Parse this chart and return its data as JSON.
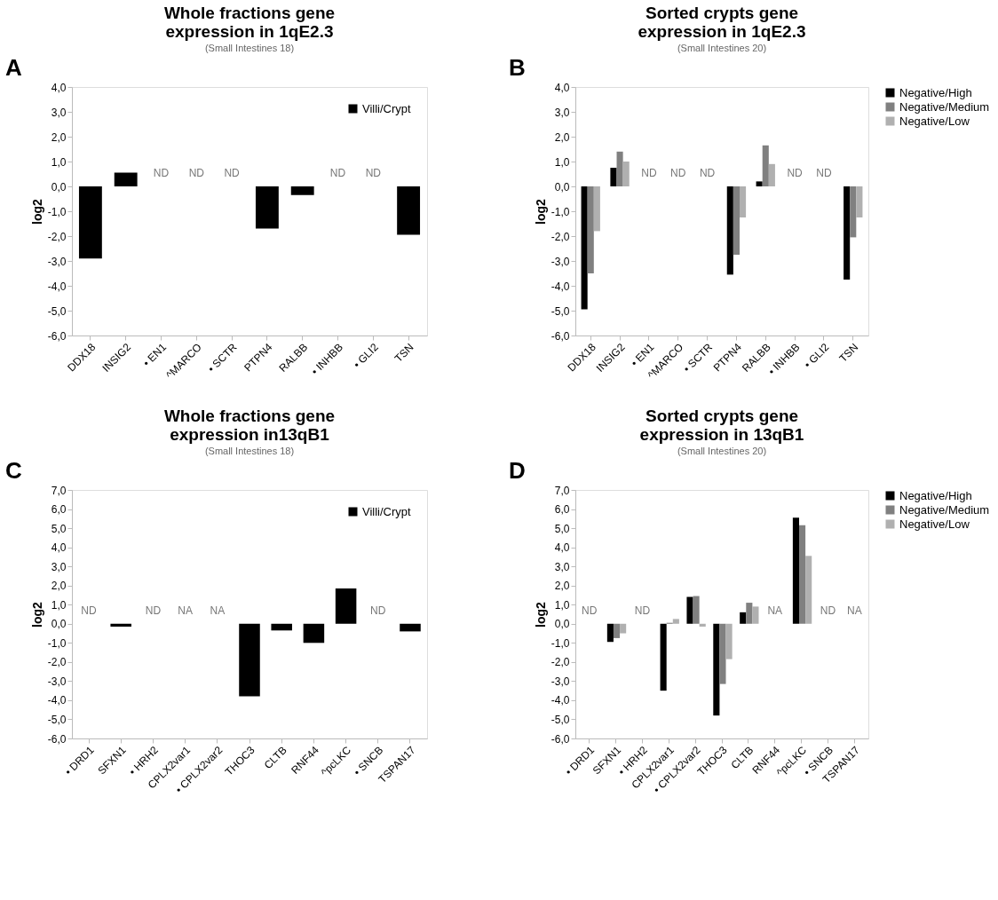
{
  "chart_data": [
    {
      "type": "bar",
      "title": "Whole fractions gene expression in 1qE2.3",
      "subtitle": "(Small Intestines 18)",
      "ylabel": "log2",
      "categories": [
        "DDX18",
        "INSIG2",
        "• EN1",
        "^MARCO",
        "• SCTR",
        "PTPN4",
        "RALBB",
        "• INHBB",
        "• GLI2",
        "TSN"
      ],
      "series": [
        {
          "name": "Villi/Crypt",
          "color": "#000000",
          "values": [
            -2.9,
            0.55,
            null,
            null,
            null,
            -1.7,
            -0.35,
            null,
            null,
            -1.95
          ],
          "value_labels": [
            null,
            null,
            "ND",
            "ND",
            "ND",
            null,
            null,
            "ND",
            "ND",
            null
          ]
        }
      ],
      "ylim": [
        -6,
        4
      ],
      "yticks": [
        {
          "value": -6,
          "label": "-6,0"
        },
        {
          "value": -5,
          "label": "-5,0"
        },
        {
          "value": -4,
          "label": "-4,0"
        },
        {
          "value": -3,
          "label": "-3,0"
        },
        {
          "value": -2,
          "label": "-2,0"
        },
        {
          "value": -1,
          "label": "-1,0"
        },
        {
          "value": 0,
          "label": "0,0"
        },
        {
          "value": 1,
          "label": "1,0"
        },
        {
          "value": 2,
          "label": "2,0"
        },
        {
          "value": 3,
          "label": "3,0"
        },
        {
          "value": 4,
          "label": "4,0"
        }
      ],
      "legend": "top right",
      "annotations": [
        "A"
      ]
    },
    {
      "type": "bar",
      "title": "Sorted crypts gene expression in 1qE2.3",
      "subtitle": "(Small Intestines 20)",
      "ylabel": "log2",
      "categories": [
        "DDX18",
        "INSIG2",
        "• EN1",
        "^MARCO",
        "• SCTR",
        "PTPN4",
        "RALBB",
        "• INHBB",
        "• GLI2",
        "TSN"
      ],
      "series": [
        {
          "name": "Negative/High",
          "color": "#000000",
          "values": [
            -4.95,
            0.75,
            null,
            null,
            null,
            -3.55,
            0.2,
            null,
            null,
            -3.75
          ],
          "value_labels": [
            null,
            null,
            "ND",
            "ND",
            "ND",
            null,
            null,
            "ND",
            "ND",
            null
          ]
        },
        {
          "name": "Negative/Medium",
          "color": "#808080",
          "values": [
            -3.5,
            1.4,
            null,
            null,
            null,
            -2.75,
            1.65,
            null,
            null,
            -2.05
          ]
        },
        {
          "name": "Negative/Low",
          "color": "#b0b0b0",
          "values": [
            -1.8,
            1.0,
            null,
            null,
            null,
            -1.25,
            0.9,
            null,
            null,
            -1.25
          ]
        }
      ],
      "ylim": [
        -6,
        4
      ],
      "yticks": [
        {
          "value": -6,
          "label": "-6,0"
        },
        {
          "value": -5,
          "label": "-5,0"
        },
        {
          "value": -4,
          "label": "-4,0"
        },
        {
          "value": -3,
          "label": "-3,0"
        },
        {
          "value": -2,
          "label": "-2,0"
        },
        {
          "value": -1,
          "label": "-1,0"
        },
        {
          "value": 0,
          "label": "0,0"
        },
        {
          "value": 1,
          "label": "1,0"
        },
        {
          "value": 2,
          "label": "2,0"
        },
        {
          "value": 3,
          "label": "3,0"
        },
        {
          "value": 4,
          "label": "4,0"
        }
      ],
      "legend": "right",
      "annotations": [
        "B"
      ]
    },
    {
      "type": "bar",
      "title": "Whole fractions gene expression in13qB1",
      "subtitle": "(Small Intestines 18)",
      "ylabel": "log2",
      "categories": [
        "• DRD1",
        "SFXN1",
        "• HRH2",
        "CPLX2var1",
        "• CPLX2var2",
        "THOC3",
        "CLTB",
        "RNF44",
        "^pcLKC",
        "• SNCB",
        "TSPAN17"
      ],
      "series": [
        {
          "name": "Villi/Crypt",
          "color": "#000000",
          "values": [
            null,
            -0.15,
            null,
            null,
            null,
            -3.8,
            -0.35,
            -1.0,
            1.85,
            null,
            -0.4
          ],
          "value_labels": [
            "ND",
            null,
            "ND",
            "NA",
            "NA",
            null,
            null,
            null,
            null,
            "ND",
            null
          ]
        }
      ],
      "ylim": [
        -6,
        7
      ],
      "yticks": [
        {
          "value": -6,
          "label": "-6,0"
        },
        {
          "value": -5,
          "label": "-5,0"
        },
        {
          "value": -4,
          "label": "-4,0"
        },
        {
          "value": -3,
          "label": "-3,0"
        },
        {
          "value": -2,
          "label": "-2,0"
        },
        {
          "value": -1,
          "label": "-1,0"
        },
        {
          "value": 0,
          "label": "0,0"
        },
        {
          "value": 1,
          "label": "1,0"
        },
        {
          "value": 2,
          "label": "2,0"
        },
        {
          "value": 3,
          "label": "3,0"
        },
        {
          "value": 4,
          "label": "4,0"
        },
        {
          "value": 5,
          "label": "5,0"
        },
        {
          "value": 6,
          "label": "6,0"
        },
        {
          "value": 7,
          "label": "7,0"
        }
      ],
      "legend": "top right",
      "annotations": [
        "C"
      ]
    },
    {
      "type": "bar",
      "title": "Sorted crypts gene expression in 13qB1",
      "subtitle": "(Small Intestines 20)",
      "ylabel": "log2",
      "categories": [
        "• DRD1",
        "SFXN1",
        "• HRH2",
        "CPLX2var1",
        "• CPLX2var2",
        "THOC3",
        "CLTB",
        "RNF44",
        "^pcLKC",
        "• SNCB",
        "TSPAN17"
      ],
      "series": [
        {
          "name": "Negative/High",
          "color": "#000000",
          "values": [
            null,
            -0.95,
            null,
            -3.5,
            1.4,
            -4.8,
            0.6,
            null,
            5.55,
            null,
            null
          ],
          "value_labels": [
            "ND",
            null,
            "ND",
            null,
            null,
            null,
            null,
            "NA",
            null,
            "ND",
            "NA"
          ]
        },
        {
          "name": "Negative/Medium",
          "color": "#808080",
          "values": [
            null,
            -0.75,
            null,
            0.05,
            1.45,
            -3.15,
            1.1,
            null,
            5.15,
            null,
            null
          ]
        },
        {
          "name": "Negative/Low",
          "color": "#b0b0b0",
          "values": [
            null,
            -0.5,
            null,
            0.25,
            -0.15,
            -1.85,
            0.9,
            null,
            3.55,
            null,
            null
          ]
        }
      ],
      "ylim": [
        -6,
        7
      ],
      "yticks": [
        {
          "value": -6,
          "label": "-6,0"
        },
        {
          "value": -5,
          "label": "-5,0"
        },
        {
          "value": -4,
          "label": "-4,0"
        },
        {
          "value": -3,
          "label": "-3,0"
        },
        {
          "value": -2,
          "label": "-2,0"
        },
        {
          "value": -1,
          "label": "-1,0"
        },
        {
          "value": 0,
          "label": "0,0"
        },
        {
          "value": 1,
          "label": "1,0"
        },
        {
          "value": 2,
          "label": "2,0"
        },
        {
          "value": 3,
          "label": "3,0"
        },
        {
          "value": 4,
          "label": "4,0"
        },
        {
          "value": 5,
          "label": "5,0"
        },
        {
          "value": 6,
          "label": "6,0"
        },
        {
          "value": 7,
          "label": "7,0"
        }
      ],
      "legend": "right",
      "annotations": [
        "D"
      ]
    }
  ]
}
